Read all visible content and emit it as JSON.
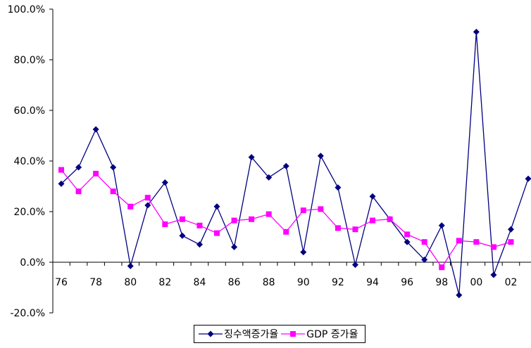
{
  "chart_data": {
    "type": "line",
    "title": "",
    "xlabel": "",
    "ylabel": "",
    "x": [
      "76",
      "77",
      "78",
      "79",
      "80",
      "81",
      "82",
      "83",
      "84",
      "85",
      "86",
      "87",
      "88",
      "89",
      "90",
      "91",
      "92",
      "93",
      "94",
      "95",
      "96",
      "97",
      "98",
      "99",
      "00",
      "01",
      "02",
      "03"
    ],
    "x_tick_labels": [
      "76",
      "78",
      "80",
      "82",
      "84",
      "86",
      "88",
      "90",
      "92",
      "94",
      "96",
      "98",
      "00",
      "02"
    ],
    "y_tick_labels": [
      "100.0%",
      "80.0%",
      "60.0%",
      "40.0%",
      "20.0%",
      "0.0%",
      "-20.0%"
    ],
    "ylim": [
      -20,
      100
    ],
    "y_unit": "%",
    "grid": false,
    "legend_position": "bottom",
    "series": [
      {
        "name": "징수액증가율",
        "color": "#000080",
        "marker": "diamond",
        "values": [
          31,
          37.5,
          52.5,
          37.5,
          -1.5,
          22.5,
          31.5,
          10.5,
          7,
          22,
          6,
          41.5,
          33.5,
          38,
          4,
          42,
          29.5,
          -1,
          26,
          17,
          8,
          1,
          14.5,
          -13,
          91,
          -5,
          13,
          33
        ]
      },
      {
        "name": "GDP 증가율",
        "color": "#FF00FF",
        "marker": "square",
        "values": [
          36.5,
          28,
          35,
          28,
          22,
          25.5,
          15,
          17,
          14.5,
          11.5,
          16.5,
          17,
          19,
          12,
          20.5,
          21,
          13.5,
          13,
          16.5,
          17,
          11,
          8,
          -2,
          8.5,
          8,
          6,
          8,
          null
        ]
      }
    ]
  }
}
